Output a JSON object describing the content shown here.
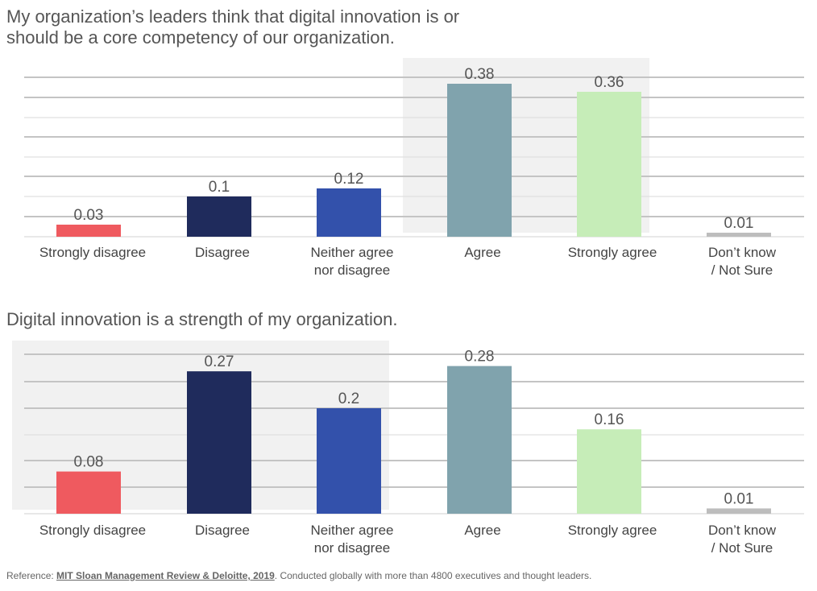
{
  "charts": [
    {
      "title": "My organization’s leaders think that digital innovation is or should be a core competency of our organization.",
      "chart_data": {
        "type": "bar",
        "categories": [
          [
            "Strongly disagree"
          ],
          [
            "Disagree"
          ],
          [
            "Neither agree",
            "nor disagree"
          ],
          [
            "Agree"
          ],
          [
            "Strongly agree"
          ],
          [
            "Don’t know",
            "/ Not Sure"
          ]
        ],
        "values": [
          0.03,
          0.1,
          0.12,
          0.38,
          0.36,
          0.01
        ],
        "value_labels": [
          "0.03",
          "0.1",
          "0.12",
          "0.38",
          "0.36",
          "0.01"
        ],
        "colors": [
          "#ef5a5f",
          "#1f2b5c",
          "#3351ab",
          "#80a3ad",
          "#c6edb8",
          "#bdbdbd"
        ],
        "highlight_categories": [
          3,
          4
        ],
        "ylim": [
          0,
          0.4
        ],
        "grid": true
      }
    },
    {
      "title": "Digital innovation is a strength of my organization.",
      "chart_data": {
        "type": "bar",
        "categories": [
          [
            "Strongly disagree"
          ],
          [
            "Disagree"
          ],
          [
            "Neither agree",
            "nor disagree"
          ],
          [
            "Agree"
          ],
          [
            "Strongly agree"
          ],
          [
            "Don’t know",
            "/ Not Sure"
          ]
        ],
        "values": [
          0.08,
          0.27,
          0.2,
          0.28,
          0.16,
          0.01
        ],
        "value_labels": [
          "0.08",
          "0.27",
          "0.2",
          "0.28",
          "0.16",
          "0.01"
        ],
        "colors": [
          "#ef5a5f",
          "#1f2b5c",
          "#3351ab",
          "#80a3ad",
          "#c6edb8",
          "#bdbdbd"
        ],
        "highlight_categories": [
          0,
          1,
          2
        ],
        "ylim": [
          0,
          0.3
        ],
        "grid": true
      }
    }
  ],
  "footer": {
    "prefix": "Reference: ",
    "source": "MIT Sloan Management Review & Deloitte, 2019",
    "suffix": ". Conducted globally with more than 4800 executives and thought leaders."
  }
}
